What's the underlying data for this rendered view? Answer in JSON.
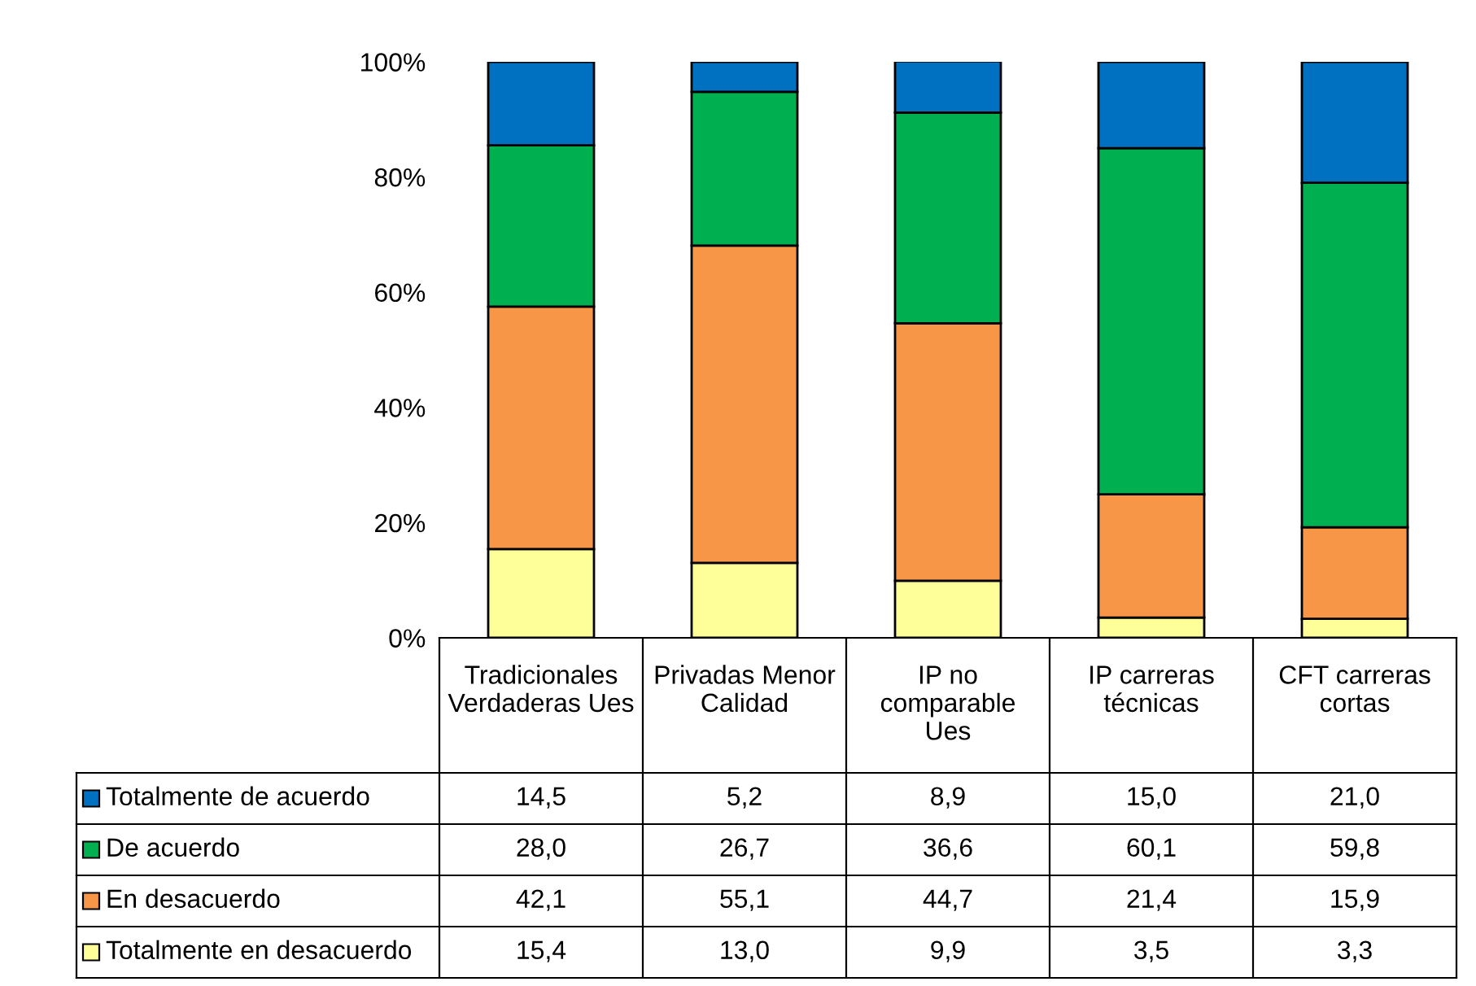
{
  "chart_data": {
    "type": "bar",
    "stacked": true,
    "categories": [
      "Tradicionales\nVerdaderas Ues",
      "Privadas Menor\nCalidad",
      "IP no\ncomparable\nUes",
      "IP carreras\ntécnicas",
      "CFT carreras\ncortas"
    ],
    "series": [
      {
        "name": "Totalmente en desacuerdo",
        "color": "#ffff99",
        "values": [
          15.4,
          13.0,
          9.9,
          3.5,
          3.3
        ],
        "value_labels": [
          "15,4",
          "13,0",
          "9,9",
          "3,5",
          "3,3"
        ]
      },
      {
        "name": "En desacuerdo",
        "color": "#f79646",
        "values": [
          42.1,
          55.1,
          44.7,
          21.4,
          15.9
        ],
        "value_labels": [
          "42,1",
          "55,1",
          "44,7",
          "21,4",
          "15,9"
        ]
      },
      {
        "name": "De acuerdo",
        "color": "#00b050",
        "values": [
          28.0,
          26.7,
          36.6,
          60.1,
          59.8
        ],
        "value_labels": [
          "28,0",
          "26,7",
          "36,6",
          "60,1",
          "59,8"
        ]
      },
      {
        "name": "Totalmente de acuerdo",
        "color": "#0070c0",
        "values": [
          14.5,
          5.2,
          8.9,
          15.0,
          21.0
        ],
        "value_labels": [
          "14,5",
          "5,2",
          "8,9",
          "15,0",
          "21,0"
        ]
      }
    ],
    "ylim": [
      0,
      100
    ],
    "yticks": [
      {
        "value": 0,
        "label": "0%"
      },
      {
        "value": 20,
        "label": "20%"
      },
      {
        "value": 40,
        "label": "40%"
      },
      {
        "value": 60,
        "label": "60%"
      },
      {
        "value": 80,
        "label": "80%"
      },
      {
        "value": 100,
        "label": "100%"
      }
    ],
    "grid": false,
    "legend": "bottom left"
  }
}
